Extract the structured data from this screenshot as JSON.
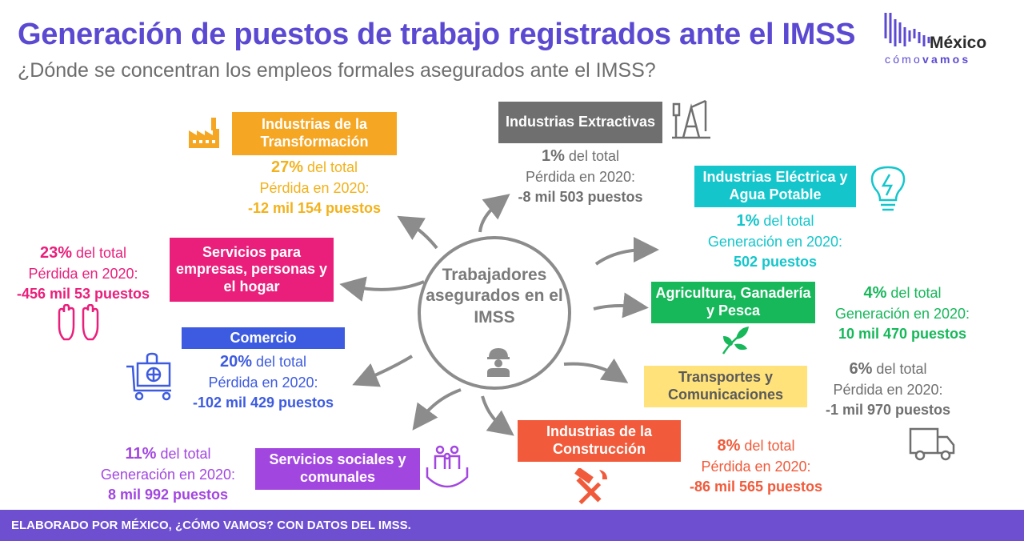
{
  "header": {
    "title": "Generación de puestos de trabajo registrados ante el IMSS",
    "subtitle": "¿Dónde se concentran los empleos formales asegurados ante el IMSS?"
  },
  "logo": {
    "word1": "México",
    "word2a": "cómo",
    "word2b": "vamos"
  },
  "center": {
    "label": "Trabajadores asegurados en el IMSS"
  },
  "sectors": {
    "transformacion": {
      "name": "Industrias de la Transformación",
      "pct": "27%",
      "pct_suffix": " del total",
      "kind": "Pérdida en 2020:",
      "amount": "-12 mil 154 puestos",
      "color": "#f5a623",
      "text_color": "#f2b21c"
    },
    "extractivas": {
      "name": "Industrias Extractivas",
      "pct": "1%",
      "pct_suffix": " del total",
      "kind": "Pérdida en 2020:",
      "amount": "-8 mil 503 puestos",
      "color": "#6f6f6f",
      "text_color": "#6f6f6f"
    },
    "electrica": {
      "name": "Industrias Eléctrica y Agua Potable",
      "pct": "1%",
      "pct_suffix": " del total",
      "kind": "Generación en 2020:",
      "amount": "502 puestos",
      "color": "#14c6cc",
      "text_color": "#14c6cc"
    },
    "servicios_empresas": {
      "name": "Servicios para empresas, personas y el hogar",
      "pct": "23%",
      "pct_suffix": " del total",
      "kind": "Pérdida en 2020:",
      "amount": "-456 mil 53 puestos",
      "color": "#ea1f7b",
      "text_color": "#ea1f7b"
    },
    "agricultura": {
      "name": "Agricultura, Ganadería y Pesca",
      "pct": "4%",
      "pct_suffix": " del total",
      "kind": "Generación en 2020:",
      "amount": "10 mil 470 puestos",
      "color": "#16b85a",
      "text_color": "#16b85a"
    },
    "comercio": {
      "name": "Comercio",
      "pct": "20%",
      "pct_suffix": " del total",
      "kind": "Pérdida en 2020:",
      "amount": "-102 mil 429 puestos",
      "color": "#3d5be0",
      "text_color": "#3d5be0"
    },
    "transportes": {
      "name": "Transportes y Comunicaciones",
      "pct": "6%",
      "pct_suffix": " del total",
      "kind": "Pérdida en 2020:",
      "amount": "-1 mil 970 puestos",
      "color": "#ffe27a",
      "text_color": "#6f6f6f"
    },
    "construccion": {
      "name": "Industrias de la Construcción",
      "pct": "8%",
      "pct_suffix": " del total",
      "kind": "Pérdida en 2020:",
      "amount": "-86 mil 565 puestos",
      "color": "#f15a3a",
      "text_color": "#f15a3a"
    },
    "sociales": {
      "name": "Servicios sociales y comunales",
      "pct": "11%",
      "pct_suffix": " del total",
      "kind": "Generación en 2020:",
      "amount": "8 mil 992 puestos",
      "color": "#a246e0",
      "text_color": "#a246e0"
    }
  },
  "icons": [
    "factory-icon",
    "oil-pump-icon",
    "lightbulb-icon",
    "hands-icon",
    "plant-icon",
    "shopping-cart-icon",
    "truck-icon",
    "tools-icon",
    "family-care-icon",
    "worker-icon"
  ],
  "footer": {
    "credit": "ELABORADO POR MÉXICO, ¿CÓMO VAMOS? CON DATOS DEL IMSS."
  }
}
